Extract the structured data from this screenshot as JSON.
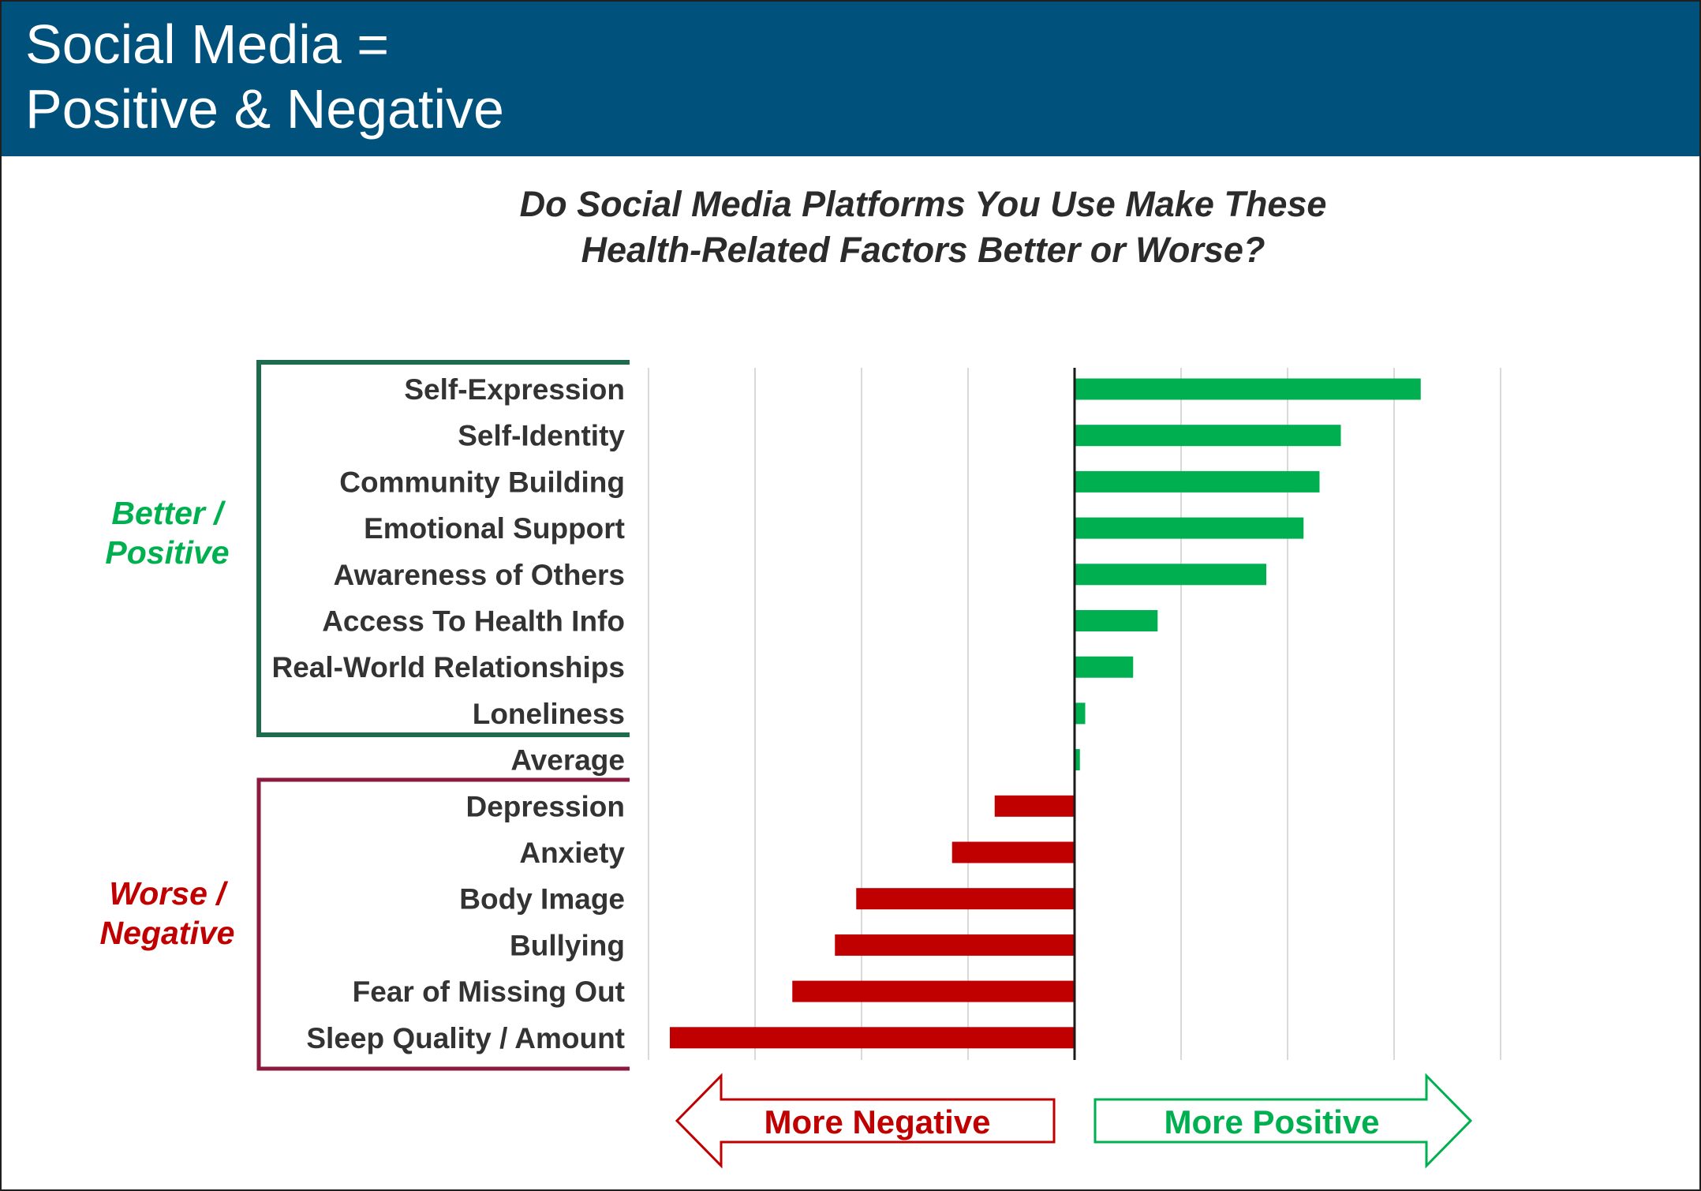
{
  "header": {
    "title_line1": "Social Media =",
    "title_line2": "Positive & Negative"
  },
  "colors": {
    "header_bg": "#00527c",
    "positive": "#00b050",
    "negative": "#c00000",
    "better_bracket": "#1e6b4e",
    "worse_bracket": "#8b1a3e"
  },
  "groups": {
    "better_line1": "Better /",
    "better_line2": "Positive",
    "worse_line1": "Worse /",
    "worse_line2": "Negative"
  },
  "arrows": {
    "negative_label": "More Negative",
    "positive_label": "More Positive"
  },
  "chart_data": {
    "type": "bar",
    "orientation": "horizontal",
    "title_line1": "Do Social Media Platforms You Use Make These",
    "title_line2": "Health-Related Factors Better or Worse?",
    "categories": [
      "Self-Expression",
      "Self-Identity",
      "Community Building",
      "Emotional Support",
      "Awareness of Others",
      "Access To Health Info",
      "Real-World Relationships",
      "Loneliness",
      "Average",
      "Depression",
      "Anxiety",
      "Body Image",
      "Bullying",
      "Fear of Missing Out",
      "Sleep Quality / Amount"
    ],
    "values": [
      3.25,
      2.5,
      2.3,
      2.15,
      1.8,
      0.78,
      0.55,
      0.1,
      0.05,
      -0.75,
      -1.15,
      -2.05,
      -2.25,
      -2.65,
      -3.8
    ],
    "xlim": [
      -4,
      4
    ],
    "grid": true,
    "grid_step": 1,
    "xlabel": "",
    "ylabel": ""
  }
}
